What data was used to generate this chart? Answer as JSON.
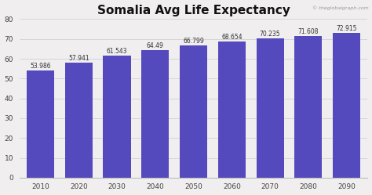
{
  "title": "Somalia Avg Life Expectancy",
  "watermark": "© theglobalgraph.com",
  "categories": [
    "2010",
    "2020",
    "2030",
    "2040",
    "2050",
    "2060",
    "2070",
    "2080",
    "2090"
  ],
  "values": [
    53.986,
    57.941,
    61.543,
    64.49,
    66.799,
    68.654,
    70.235,
    71.608,
    72.915
  ],
  "bar_color": "#5549be",
  "background_color": "#f0eeee",
  "plot_bg_color": "#f0eeee",
  "ylim": [
    0,
    80
  ],
  "yticks": [
    0,
    10,
    20,
    30,
    40,
    50,
    60,
    70,
    80
  ],
  "title_fontsize": 11,
  "label_fontsize": 5.5,
  "tick_fontsize": 6.5,
  "watermark_fontsize": 4.5
}
